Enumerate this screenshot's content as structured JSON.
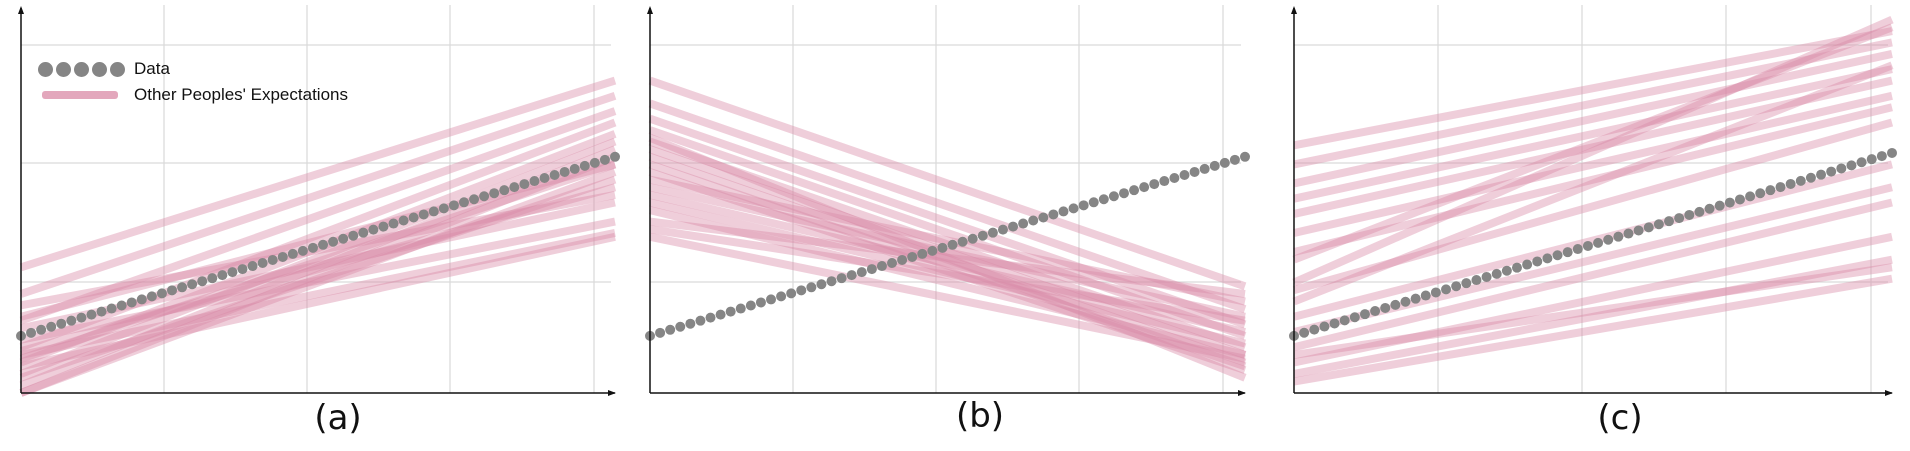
{
  "figure": {
    "legend": [
      {
        "label": "Data",
        "marker": "circle",
        "color": "#858585"
      },
      {
        "label": "Other Peoples' Expectations",
        "marker": "line",
        "color": "#d98aa6"
      }
    ],
    "captions": [
      "(a)",
      "(b)",
      "(c)"
    ]
  },
  "chart_data": [
    {
      "type": "line",
      "caption": "(a)",
      "xlim": [
        0,
        1
      ],
      "ylim": [
        0,
        1
      ],
      "grid": true,
      "xlabel": "",
      "ylabel": "",
      "title": "",
      "legend_position": "top-left",
      "data_series": {
        "marker": "circle",
        "x_start": 0,
        "x_end": 1,
        "y_start": 0.15,
        "y_end": 0.62,
        "n_points": 60
      },
      "expectations": [
        {
          "y0": 0.33,
          "y1": 0.82
        },
        {
          "y0": 0.26,
          "y1": 0.78
        },
        {
          "y0": 0.19,
          "y1": 0.74
        },
        {
          "y0": 0.12,
          "y1": 0.71
        },
        {
          "y0": 0.08,
          "y1": 0.68
        },
        {
          "y0": 0.05,
          "y1": 0.66
        },
        {
          "y0": 0.02,
          "y1": 0.64
        },
        {
          "y0": 0.0,
          "y1": 0.62
        },
        {
          "y0": 0.0,
          "y1": 0.58
        },
        {
          "y0": 0.04,
          "y1": 0.56
        },
        {
          "y0": 0.11,
          "y1": 0.54
        },
        {
          "y0": 0.17,
          "y1": 0.5
        },
        {
          "y0": 0.14,
          "y1": 0.45
        },
        {
          "y0": 0.1,
          "y1": 0.42
        },
        {
          "y0": 0.07,
          "y1": 0.41
        },
        {
          "y0": 0.2,
          "y1": 0.6
        },
        {
          "y0": 0.23,
          "y1": 0.52
        },
        {
          "y0": 0.09,
          "y1": 0.6
        }
      ]
    },
    {
      "type": "line",
      "caption": "(b)",
      "xlim": [
        0,
        1
      ],
      "ylim": [
        0,
        1
      ],
      "grid": true,
      "xlabel": "",
      "ylabel": "",
      "title": "",
      "data_series": {
        "marker": "circle",
        "x_start": 0,
        "x_end": 1,
        "y_start": 0.15,
        "y_end": 0.62,
        "n_points": 60
      },
      "expectations": [
        {
          "y0": 0.82,
          "y1": 0.28
        },
        {
          "y0": 0.76,
          "y1": 0.22
        },
        {
          "y0": 0.72,
          "y1": 0.18
        },
        {
          "y0": 0.69,
          "y1": 0.15
        },
        {
          "y0": 0.66,
          "y1": 0.12
        },
        {
          "y0": 0.64,
          "y1": 0.1
        },
        {
          "y0": 0.62,
          "y1": 0.08
        },
        {
          "y0": 0.6,
          "y1": 0.07
        },
        {
          "y0": 0.58,
          "y1": 0.06
        },
        {
          "y0": 0.56,
          "y1": 0.24
        },
        {
          "y0": 0.54,
          "y1": 0.2
        },
        {
          "y0": 0.52,
          "y1": 0.16
        },
        {
          "y0": 0.5,
          "y1": 0.13
        },
        {
          "y0": 0.48,
          "y1": 0.1
        },
        {
          "y0": 0.45,
          "y1": 0.26
        },
        {
          "y0": 0.43,
          "y1": 0.19
        },
        {
          "y0": 0.41,
          "y1": 0.09
        },
        {
          "y0": 0.67,
          "y1": 0.04
        }
      ]
    },
    {
      "type": "line",
      "caption": "(c)",
      "xlim": [
        0,
        1
      ],
      "ylim": [
        0,
        1
      ],
      "grid": true,
      "xlabel": "",
      "ylabel": "",
      "title": "",
      "data_series": {
        "marker": "circle",
        "x_start": 0,
        "x_end": 1,
        "y_start": 0.15,
        "y_end": 0.63,
        "n_points": 60
      },
      "expectations": [
        {
          "y0": 0.65,
          "y1": 0.95
        },
        {
          "y0": 0.6,
          "y1": 0.92
        },
        {
          "y0": 0.55,
          "y1": 0.89
        },
        {
          "y0": 0.51,
          "y1": 0.85
        },
        {
          "y0": 0.47,
          "y1": 0.82
        },
        {
          "y0": 0.42,
          "y1": 0.78
        },
        {
          "y0": 0.37,
          "y1": 0.75
        },
        {
          "y0": 0.29,
          "y1": 0.98
        },
        {
          "y0": 0.27,
          "y1": 0.71
        },
        {
          "y0": 0.2,
          "y1": 0.6
        },
        {
          "y0": 0.16,
          "y1": 0.54
        },
        {
          "y0": 0.12,
          "y1": 0.5
        },
        {
          "y0": 0.08,
          "y1": 0.41
        },
        {
          "y0": 0.05,
          "y1": 0.35
        },
        {
          "y0": 0.03,
          "y1": 0.3
        },
        {
          "y0": 0.1,
          "y1": 0.33
        },
        {
          "y0": 0.35,
          "y1": 0.96
        },
        {
          "y0": 0.24,
          "y1": 0.86
        }
      ]
    }
  ]
}
